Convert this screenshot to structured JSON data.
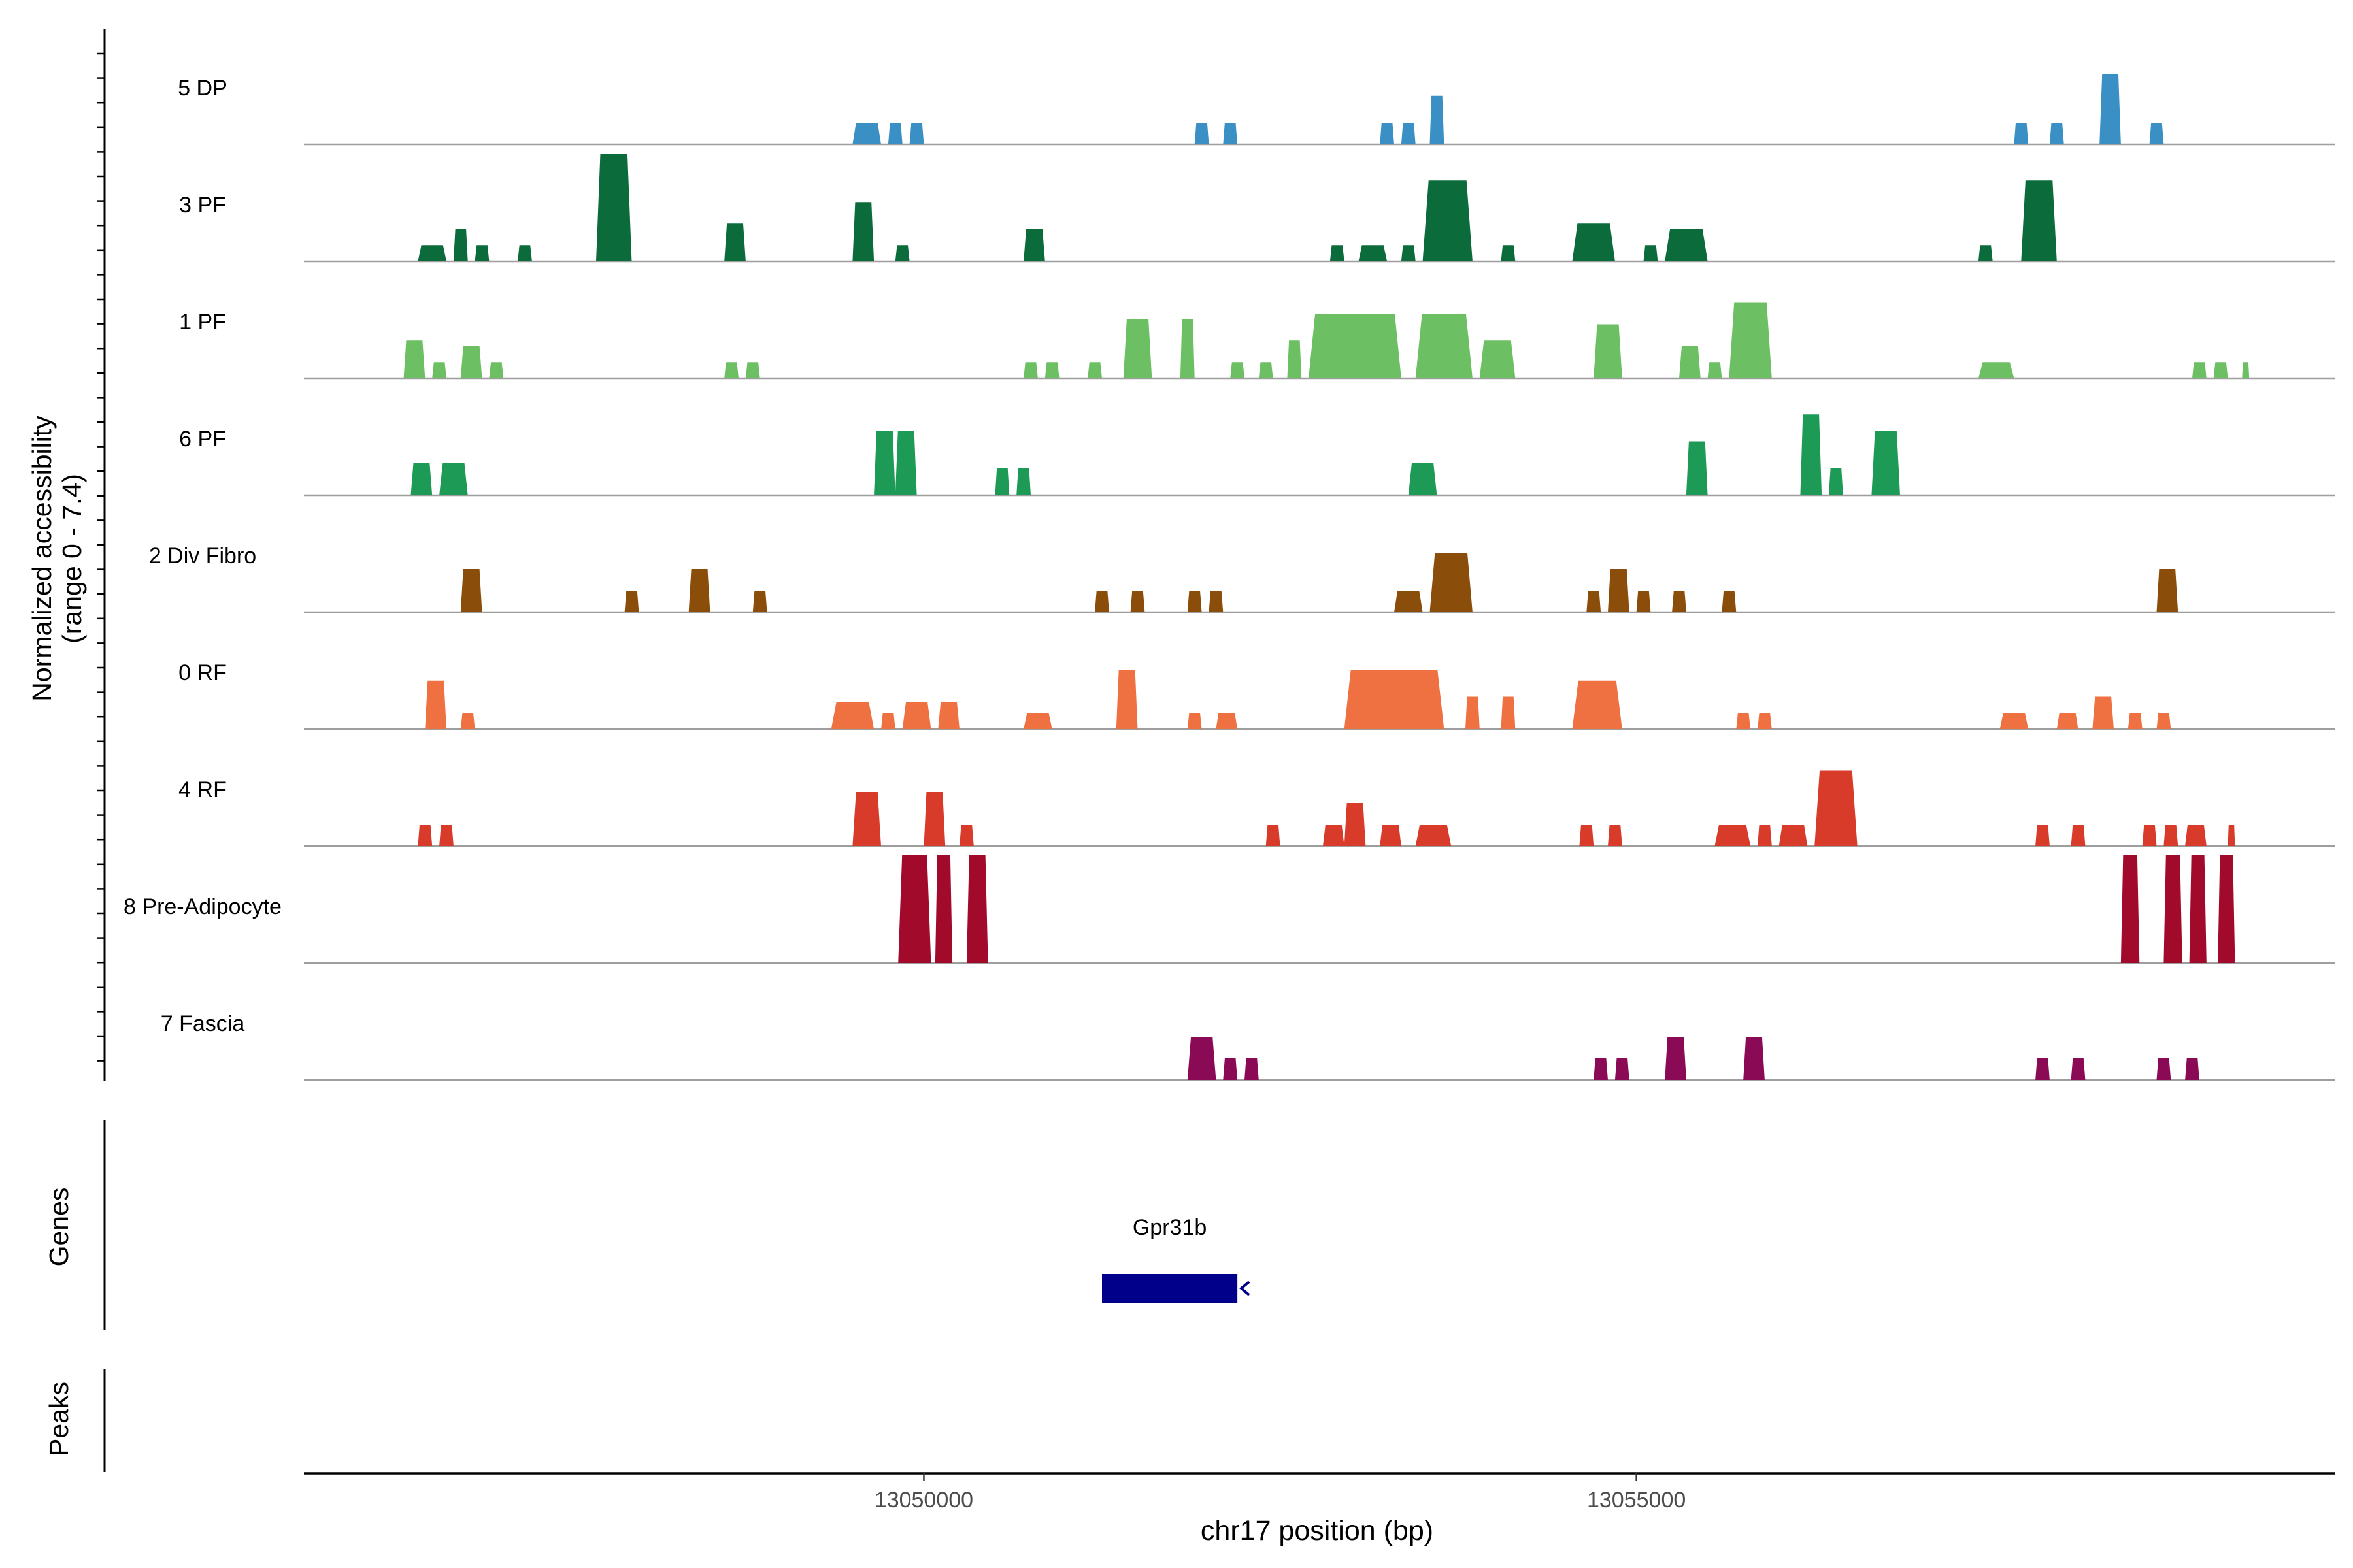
{
  "chart_data": {
    "type": "area",
    "title": "",
    "xlabel": "chr17 position (bp)",
    "ylabel": "Normalized accessibility",
    "ylabel_range": "(range 0 - 7.4)",
    "y_range": [
      0,
      7.4
    ],
    "x_range": [
      13045650,
      13059900
    ],
    "x_ticks": [
      {
        "value": 13050000,
        "label": "13050000"
      },
      {
        "value": 13055000,
        "label": "13055000"
      }
    ],
    "tracks": [
      {
        "name": "5 DP",
        "color": "#3a8fc4",
        "peaks": [
          [
            13049500,
            13049700,
            0.2
          ],
          [
            13049750,
            13049850,
            0.2
          ],
          [
            13049900,
            13050000,
            0.2
          ],
          [
            13051900,
            13052000,
            0.2
          ],
          [
            13052100,
            13052200,
            0.2
          ],
          [
            13053200,
            13053300,
            0.2
          ],
          [
            13053350,
            13053450,
            0.2
          ],
          [
            13053550,
            13053650,
            0.45
          ],
          [
            13057650,
            13057750,
            0.2
          ],
          [
            13057900,
            13058000,
            0.2
          ],
          [
            13058250,
            13058400,
            0.65
          ],
          [
            13058600,
            13058700,
            0.2
          ]
        ]
      },
      {
        "name": "3 PF",
        "color": "#0c6b3a",
        "peaks": [
          [
            13046450,
            13046650,
            0.15
          ],
          [
            13046700,
            13046800,
            0.3
          ],
          [
            13046850,
            13046950,
            0.15
          ],
          [
            13047150,
            13047250,
            0.15
          ],
          [
            13047700,
            13047950,
            1.0
          ],
          [
            13048600,
            13048750,
            0.35
          ],
          [
            13049500,
            13049650,
            0.55
          ],
          [
            13049800,
            13049900,
            0.15
          ],
          [
            13050700,
            13050850,
            0.3
          ],
          [
            13052850,
            13052950,
            0.15
          ],
          [
            13053050,
            13053250,
            0.15
          ],
          [
            13053350,
            13053450,
            0.15
          ],
          [
            13053500,
            13053850,
            0.75
          ],
          [
            13054050,
            13054150,
            0.15
          ],
          [
            13054550,
            13054850,
            0.35
          ],
          [
            13055050,
            13055150,
            0.15
          ],
          [
            13055200,
            13055500,
            0.3
          ],
          [
            13057400,
            13057500,
            0.15
          ],
          [
            13057700,
            13057950,
            0.75
          ]
        ]
      },
      {
        "name": "1 PF",
        "color": "#6cbf63",
        "peaks": [
          [
            13046350,
            13046500,
            0.35
          ],
          [
            13046550,
            13046650,
            0.15
          ],
          [
            13046750,
            13046900,
            0.3
          ],
          [
            13046950,
            13047050,
            0.15
          ],
          [
            13048600,
            13048700,
            0.15
          ],
          [
            13048750,
            13048850,
            0.15
          ],
          [
            13050700,
            13050800,
            0.15
          ],
          [
            13050850,
            13050950,
            0.15
          ],
          [
            13051150,
            13051250,
            0.15
          ],
          [
            13051400,
            13051600,
            0.55
          ],
          [
            13051800,
            13051900,
            0.55
          ],
          [
            13052150,
            13052250,
            0.15
          ],
          [
            13052350,
            13052450,
            0.15
          ],
          [
            13052550,
            13052650,
            0.35
          ],
          [
            13052700,
            13053350,
            0.6
          ],
          [
            13053450,
            13053850,
            0.6
          ],
          [
            13053900,
            13054150,
            0.35
          ],
          [
            13054700,
            13054900,
            0.5
          ],
          [
            13055300,
            13055450,
            0.3
          ],
          [
            13055500,
            13055600,
            0.15
          ],
          [
            13055650,
            13055950,
            0.7
          ],
          [
            13057400,
            13057650,
            0.15
          ],
          [
            13058900,
            13059000,
            0.15
          ],
          [
            13059050,
            13059150,
            0.15
          ],
          [
            13059250,
            13059300,
            0.15
          ]
        ]
      },
      {
        "name": "6 PF",
        "color": "#1d9a55",
        "peaks": [
          [
            13046400,
            13046550,
            0.3
          ],
          [
            13046600,
            13046800,
            0.3
          ],
          [
            13049650,
            13049800,
            0.6
          ],
          [
            13049800,
            13049950,
            0.6
          ],
          [
            13050500,
            13050600,
            0.25
          ],
          [
            13050650,
            13050750,
            0.25
          ],
          [
            13053400,
            13053600,
            0.3
          ],
          [
            13055350,
            13055500,
            0.5
          ],
          [
            13056150,
            13056300,
            0.75
          ],
          [
            13056350,
            13056450,
            0.25
          ],
          [
            13056650,
            13056850,
            0.6
          ]
        ]
      },
      {
        "name": "2 Div Fibro",
        "color": "#8b4e0a",
        "peaks": [
          [
            13046750,
            13046900,
            0.4
          ],
          [
            13047900,
            13048000,
            0.2
          ],
          [
            13048350,
            13048500,
            0.4
          ],
          [
            13048800,
            13048900,
            0.2
          ],
          [
            13051200,
            13051300,
            0.2
          ],
          [
            13051450,
            13051550,
            0.2
          ],
          [
            13051850,
            13051950,
            0.2
          ],
          [
            13052000,
            13052100,
            0.2
          ],
          [
            13053300,
            13053500,
            0.2
          ],
          [
            13053550,
            13053850,
            0.55
          ],
          [
            13054650,
            13054750,
            0.2
          ],
          [
            13054800,
            13054950,
            0.4
          ],
          [
            13055000,
            13055100,
            0.2
          ],
          [
            13055250,
            13055350,
            0.2
          ],
          [
            13055600,
            13055700,
            0.2
          ],
          [
            13058650,
            13058800,
            0.4
          ]
        ]
      },
      {
        "name": "0 RF",
        "color": "#ef7040",
        "peaks": [
          [
            13046500,
            13046650,
            0.45
          ],
          [
            13046750,
            13046850,
            0.15
          ],
          [
            13049350,
            13049650,
            0.25
          ],
          [
            13049700,
            13049800,
            0.15
          ],
          [
            13049850,
            13050050,
            0.25
          ],
          [
            13050100,
            13050250,
            0.25
          ],
          [
            13050700,
            13050900,
            0.15
          ],
          [
            13051350,
            13051500,
            0.55
          ],
          [
            13051850,
            13051950,
            0.15
          ],
          [
            13052050,
            13052200,
            0.15
          ],
          [
            13052950,
            13053650,
            0.55
          ],
          [
            13053800,
            13053900,
            0.3
          ],
          [
            13054050,
            13054150,
            0.3
          ],
          [
            13054550,
            13054900,
            0.45
          ],
          [
            13055700,
            13055800,
            0.15
          ],
          [
            13055850,
            13055950,
            0.15
          ],
          [
            13057550,
            13057750,
            0.15
          ],
          [
            13057950,
            13058100,
            0.15
          ],
          [
            13058200,
            13058350,
            0.3
          ],
          [
            13058450,
            13058550,
            0.15
          ],
          [
            13058650,
            13058750,
            0.15
          ]
        ]
      },
      {
        "name": "4 RF",
        "color": "#d93b2b",
        "peaks": [
          [
            13046450,
            13046550,
            0.2
          ],
          [
            13046600,
            13046700,
            0.2
          ],
          [
            13049500,
            13049700,
            0.5
          ],
          [
            13050000,
            13050150,
            0.5
          ],
          [
            13050250,
            13050350,
            0.2
          ],
          [
            13052400,
            13052500,
            0.2
          ],
          [
            13052800,
            13052950,
            0.2
          ],
          [
            13052950,
            13053100,
            0.4
          ],
          [
            13053200,
            13053350,
            0.2
          ],
          [
            13053450,
            13053700,
            0.2
          ],
          [
            13054600,
            13054700,
            0.2
          ],
          [
            13054800,
            13054900,
            0.2
          ],
          [
            13055550,
            13055800,
            0.2
          ],
          [
            13055850,
            13055950,
            0.2
          ],
          [
            13056000,
            13056200,
            0.2
          ],
          [
            13056250,
            13056550,
            0.7
          ],
          [
            13057800,
            13057900,
            0.2
          ],
          [
            13058050,
            13058150,
            0.2
          ],
          [
            13058550,
            13058650,
            0.2
          ],
          [
            13058700,
            13058800,
            0.2
          ],
          [
            13058850,
            13059000,
            0.2
          ],
          [
            13059150,
            13059200,
            0.2
          ]
        ]
      },
      {
        "name": "8 Pre-Adipocyte",
        "color": "#a10a2b",
        "peaks": [
          [
            13049820,
            13050050,
            1.0
          ],
          [
            13050080,
            13050200,
            1.0
          ],
          [
            13050300,
            13050450,
            1.0
          ],
          [
            13058400,
            13058530,
            1.0
          ],
          [
            13058700,
            13058830,
            1.0
          ],
          [
            13058880,
            13059000,
            1.0
          ],
          [
            13059080,
            13059200,
            1.0
          ]
        ]
      },
      {
        "name": "7 Fascia",
        "color": "#8b0a56",
        "peaks": [
          [
            13051850,
            13052050,
            0.4
          ],
          [
            13052100,
            13052200,
            0.2
          ],
          [
            13052250,
            13052350,
            0.2
          ],
          [
            13054700,
            13054800,
            0.2
          ],
          [
            13054850,
            13054950,
            0.2
          ],
          [
            13055200,
            13055350,
            0.4
          ],
          [
            13055750,
            13055900,
            0.4
          ],
          [
            13057800,
            13057900,
            0.2
          ],
          [
            13058050,
            13058150,
            0.2
          ],
          [
            13058650,
            13058750,
            0.2
          ],
          [
            13058850,
            13058950,
            0.2
          ]
        ]
      }
    ],
    "genes": [
      {
        "name": "Gpr31b",
        "start": 13051250,
        "end": 13052200,
        "strand": "-"
      }
    ],
    "track_labels": {
      "genes": "Genes",
      "peaks": "Peaks"
    },
    "colors": {
      "gene": "#00008b",
      "baseline": "#9e9e9e",
      "axis": "#000000"
    }
  }
}
